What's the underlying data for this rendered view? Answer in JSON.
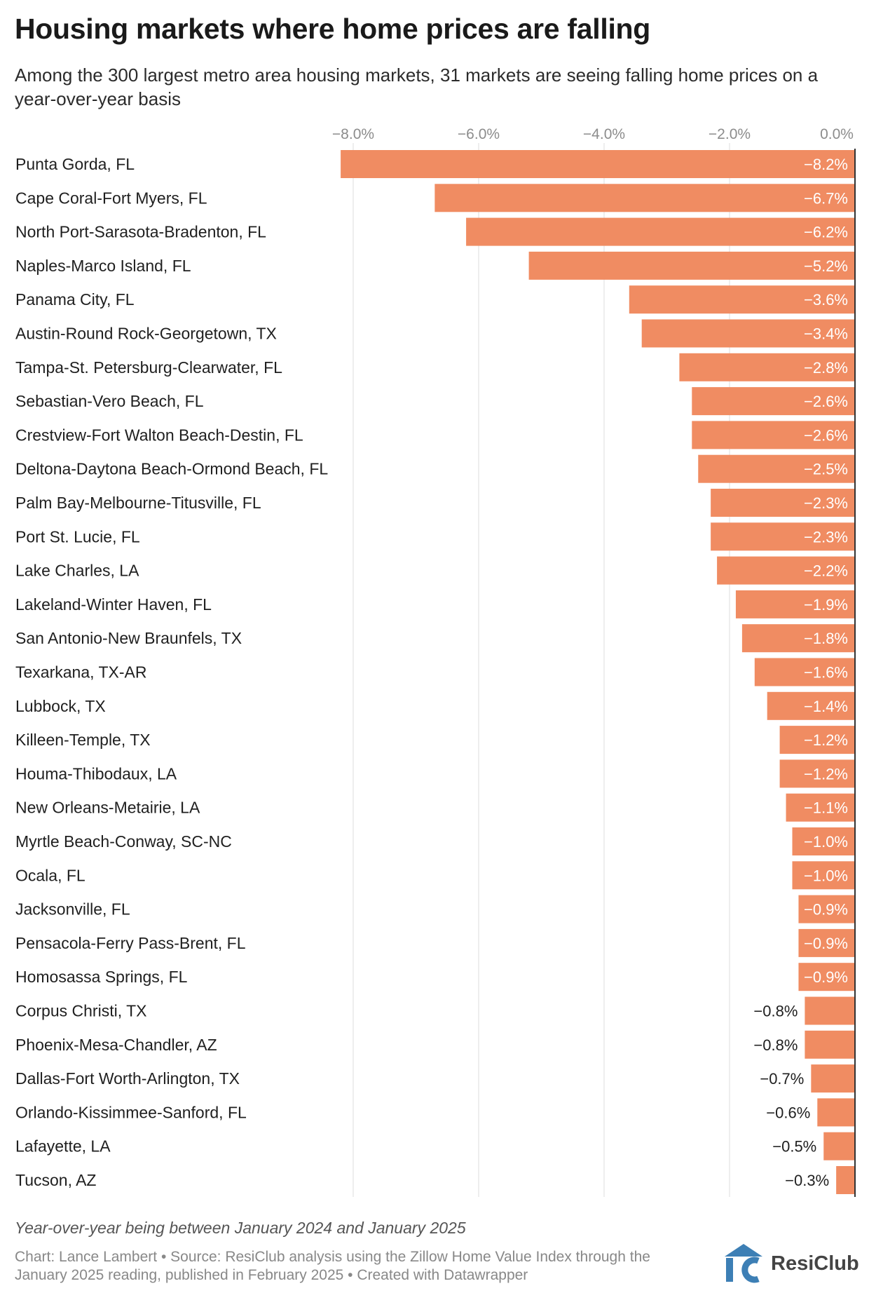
{
  "header": {
    "title": "Housing markets where home prices are falling",
    "subtitle": "Among the 300 largest metro area housing markets, 31 markets are seeing falling home prices on a year-over-year basis"
  },
  "chart_data": {
    "type": "bar",
    "orientation": "horizontal",
    "xlim": [
      -8.3,
      0
    ],
    "x_ticks": [
      -8,
      -6,
      -4,
      -2,
      0
    ],
    "x_tick_labels": [
      "−8.0%",
      "−6.0%",
      "−4.0%",
      "−2.0%",
      "0.0%"
    ],
    "grid": true,
    "bar_color": "#f08c62",
    "categories": [
      "Punta Gorda, FL",
      "Cape Coral-Fort Myers, FL",
      "North Port-Sarasota-Bradenton, FL",
      "Naples-Marco Island, FL",
      "Panama City, FL",
      "Austin-Round Rock-Georgetown, TX",
      "Tampa-St. Petersburg-Clearwater, FL",
      "Sebastian-Vero Beach, FL",
      "Crestview-Fort Walton Beach-Destin, FL",
      "Deltona-Daytona Beach-Ormond Beach, FL",
      "Palm Bay-Melbourne-Titusville, FL",
      "Port St. Lucie, FL",
      "Lake Charles, LA",
      "Lakeland-Winter Haven, FL",
      "San Antonio-New Braunfels, TX",
      "Texarkana, TX-AR",
      "Lubbock, TX",
      "Killeen-Temple, TX",
      "Houma-Thibodaux, LA",
      "New Orleans-Metairie, LA",
      "Myrtle Beach-Conway, SC-NC",
      "Ocala, FL",
      "Jacksonville, FL",
      "Pensacola-Ferry Pass-Brent, FL",
      "Homosassa Springs, FL",
      "Corpus Christi, TX",
      "Phoenix-Mesa-Chandler, AZ",
      "Dallas-Fort Worth-Arlington, TX",
      "Orlando-Kissimmee-Sanford, FL",
      "Lafayette, LA",
      "Tucson, AZ"
    ],
    "values": [
      -8.2,
      -6.7,
      -6.2,
      -5.2,
      -3.6,
      -3.4,
      -2.8,
      -2.6,
      -2.6,
      -2.5,
      -2.3,
      -2.3,
      -2.2,
      -1.9,
      -1.8,
      -1.6,
      -1.4,
      -1.2,
      -1.2,
      -1.1,
      -1.0,
      -1.0,
      -0.9,
      -0.9,
      -0.9,
      -0.8,
      -0.8,
      -0.7,
      -0.6,
      -0.5,
      -0.3
    ],
    "value_labels": [
      "−8.2%",
      "−6.7%",
      "−6.2%",
      "−5.2%",
      "−3.6%",
      "−3.4%",
      "−2.8%",
      "−2.6%",
      "−2.6%",
      "−2.5%",
      "−2.3%",
      "−2.3%",
      "−2.2%",
      "−1.9%",
      "−1.8%",
      "−1.6%",
      "−1.4%",
      "−1.2%",
      "−1.2%",
      "−1.1%",
      "−1.0%",
      "−1.0%",
      "−0.9%",
      "−0.9%",
      "−0.9%",
      "−0.8%",
      "−0.8%",
      "−0.7%",
      "−0.6%",
      "−0.5%",
      "−0.3%"
    ]
  },
  "footer": {
    "note": "Year-over-year being between January 2024 and January 2025",
    "credit": "Chart: Lance Lambert • Source: ResiClub analysis using the Zillow Home Value Index through the January 2025 reading, published in February 2025 • Created with Datawrapper",
    "logo_text": "ResiClub",
    "logo_color": "#3d7fb5"
  }
}
